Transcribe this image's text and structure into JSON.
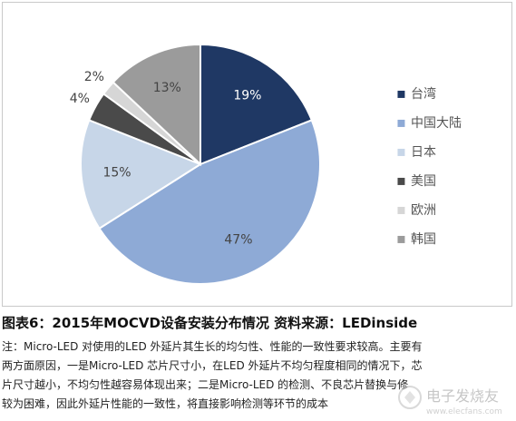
{
  "chart_data": {
    "type": "pie",
    "title": "",
    "categories": [
      "台湾",
      "中国大陆",
      "日本",
      "美国",
      "欧洲",
      "韩国"
    ],
    "values": [
      19,
      47,
      15,
      4,
      2,
      13
    ],
    "labels": [
      "19%",
      "47%",
      "15%",
      "4%",
      "2%",
      "13%"
    ],
    "colors": [
      "#1f3864",
      "#8eaad6",
      "#c7d6e8",
      "#4a4a4a",
      "#d6d6d6",
      "#9b9b9b"
    ],
    "label_colors": [
      "#ffffff",
      "#444444",
      "#444444",
      "#444444",
      "#444444",
      "#444444"
    ],
    "legend_position": "right"
  },
  "caption": "图表6：2015年MOCVD设备安装分布情况  资料来源：LEDinside",
  "note": {
    "lines": [
      "注：Micro-LED 对使用的LED 外延片其生长的均匀性、性能的一致性要求较高。主要有",
      "两方面原因，一是Micro-LED 芯片尺寸小，在LED 外延片不均匀程度相同的情况下，芯",
      "片尺寸越小，不均匀性越容易体现出来；二是Micro-LED 的检测、不良芯片替换与修",
      "较为困难，因此外延片性能的一致性，将直接影响检测等环节的成本"
    ]
  },
  "watermark": {
    "text": "电子发烧友",
    "url": "www.elecfans.com"
  }
}
